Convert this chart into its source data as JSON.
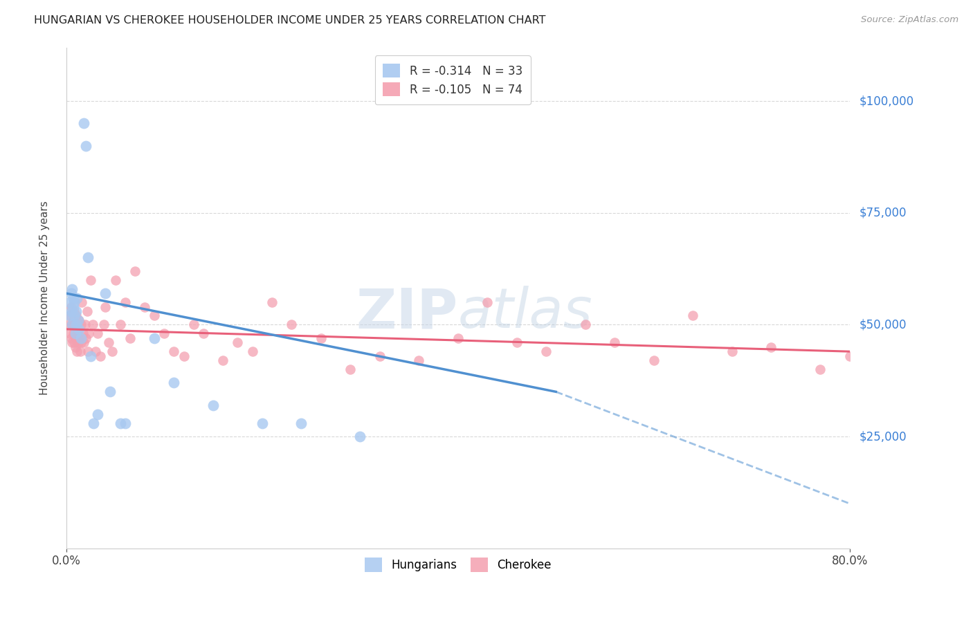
{
  "title": "HUNGARIAN VS CHEROKEE HOUSEHOLDER INCOME UNDER 25 YEARS CORRELATION CHART",
  "source": "Source: ZipAtlas.com",
  "ylabel": "Householder Income Under 25 years",
  "ytick_labels": [
    "$25,000",
    "$50,000",
    "$75,000",
    "$100,000"
  ],
  "ytick_values": [
    25000,
    50000,
    75000,
    100000
  ],
  "ylim": [
    0,
    112000
  ],
  "xlim": [
    0.0,
    0.8
  ],
  "background_color": "#ffffff",
  "grid_color": "#d8d8d8",
  "hungarian_R": "-0.314",
  "hungarian_N": "33",
  "cherokee_R": "-0.105",
  "cherokee_N": "74",
  "hungarian_color": "#a8c8f0",
  "cherokee_color": "#f4a0b0",
  "hungarian_line_color": "#5090d0",
  "cherokee_line_color": "#e8607a",
  "legend_r_color": "#4a90d9",
  "legend_n_color": "#333333",
  "hungarian_x": [
    0.003,
    0.004,
    0.005,
    0.005,
    0.006,
    0.006,
    0.007,
    0.007,
    0.008,
    0.008,
    0.009,
    0.01,
    0.01,
    0.011,
    0.012,
    0.013,
    0.015,
    0.018,
    0.02,
    0.022,
    0.025,
    0.028,
    0.032,
    0.04,
    0.045,
    0.055,
    0.06,
    0.09,
    0.11,
    0.15,
    0.2,
    0.24,
    0.3
  ],
  "hungarian_y": [
    55000,
    52000,
    57000,
    53000,
    58000,
    50000,
    56000,
    54000,
    52000,
    55000,
    48000,
    53000,
    50000,
    56000,
    51000,
    49000,
    47000,
    95000,
    90000,
    65000,
    43000,
    28000,
    30000,
    57000,
    35000,
    28000,
    28000,
    47000,
    37000,
    32000,
    28000,
    28000,
    25000
  ],
  "cherokee_x": [
    0.003,
    0.004,
    0.004,
    0.005,
    0.005,
    0.006,
    0.006,
    0.007,
    0.007,
    0.008,
    0.008,
    0.009,
    0.009,
    0.01,
    0.01,
    0.011,
    0.011,
    0.012,
    0.012,
    0.013,
    0.013,
    0.014,
    0.015,
    0.015,
    0.016,
    0.017,
    0.018,
    0.019,
    0.02,
    0.021,
    0.022,
    0.023,
    0.025,
    0.027,
    0.03,
    0.032,
    0.035,
    0.038,
    0.04,
    0.043,
    0.047,
    0.05,
    0.055,
    0.06,
    0.065,
    0.07,
    0.08,
    0.09,
    0.1,
    0.11,
    0.12,
    0.13,
    0.14,
    0.16,
    0.175,
    0.19,
    0.21,
    0.23,
    0.26,
    0.29,
    0.32,
    0.36,
    0.4,
    0.43,
    0.46,
    0.49,
    0.53,
    0.56,
    0.6,
    0.64,
    0.68,
    0.72,
    0.77,
    0.8
  ],
  "cherokee_y": [
    50000,
    48000,
    52000,
    54000,
    47000,
    50000,
    46000,
    51000,
    48000,
    53000,
    46000,
    50000,
    45000,
    52000,
    47000,
    50000,
    44000,
    48000,
    46000,
    51000,
    47000,
    44000,
    50000,
    46000,
    55000,
    48000,
    46000,
    50000,
    47000,
    53000,
    44000,
    48000,
    60000,
    50000,
    44000,
    48000,
    43000,
    50000,
    54000,
    46000,
    44000,
    60000,
    50000,
    55000,
    47000,
    62000,
    54000,
    52000,
    48000,
    44000,
    43000,
    50000,
    48000,
    42000,
    46000,
    44000,
    55000,
    50000,
    47000,
    40000,
    43000,
    42000,
    47000,
    55000,
    46000,
    44000,
    50000,
    46000,
    42000,
    52000,
    44000,
    45000,
    40000,
    43000
  ]
}
